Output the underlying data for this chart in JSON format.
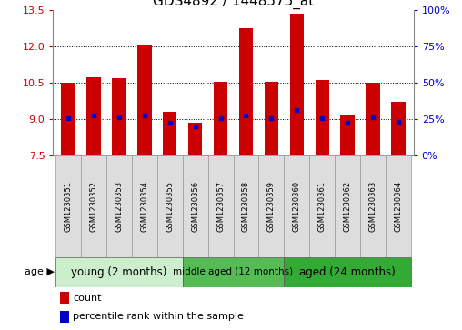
{
  "title": "GDS4892 / 1448575_at",
  "samples": [
    "GSM1230351",
    "GSM1230352",
    "GSM1230353",
    "GSM1230354",
    "GSM1230355",
    "GSM1230356",
    "GSM1230357",
    "GSM1230358",
    "GSM1230359",
    "GSM1230360",
    "GSM1230361",
    "GSM1230362",
    "GSM1230363",
    "GSM1230364"
  ],
  "bar_heights": [
    10.48,
    10.72,
    10.67,
    12.02,
    9.28,
    8.85,
    10.52,
    12.75,
    10.52,
    13.35,
    10.62,
    9.18,
    10.48,
    9.72
  ],
  "blue_dot_values": [
    9.02,
    9.12,
    9.05,
    9.12,
    8.85,
    8.68,
    9.02,
    9.15,
    9.02,
    9.38,
    9.02,
    8.82,
    9.08,
    8.88
  ],
  "ymin": 7.5,
  "ymax": 13.5,
  "yticks_left": [
    7.5,
    9.0,
    10.5,
    12.0,
    13.5
  ],
  "yticks_right": [
    0,
    25,
    50,
    75,
    100
  ],
  "bar_color": "#cc0000",
  "dot_color": "#0000cc",
  "groups": [
    {
      "label": "young (2 months)",
      "start": 0,
      "end": 5,
      "color": "#cceecc"
    },
    {
      "label": "middle aged (12 months)",
      "start": 5,
      "end": 9,
      "color": "#55bb55"
    },
    {
      "label": "aged (24 months)",
      "start": 9,
      "end": 14,
      "color": "#33aa33"
    }
  ],
  "legend_count_label": "count",
  "legend_percentile_label": "percentile rank within the sample",
  "title_fontsize": 11,
  "bar_width": 0.55,
  "sample_cell_color": "#dddddd",
  "grid_lines": [
    9.0,
    10.5,
    12.0
  ]
}
